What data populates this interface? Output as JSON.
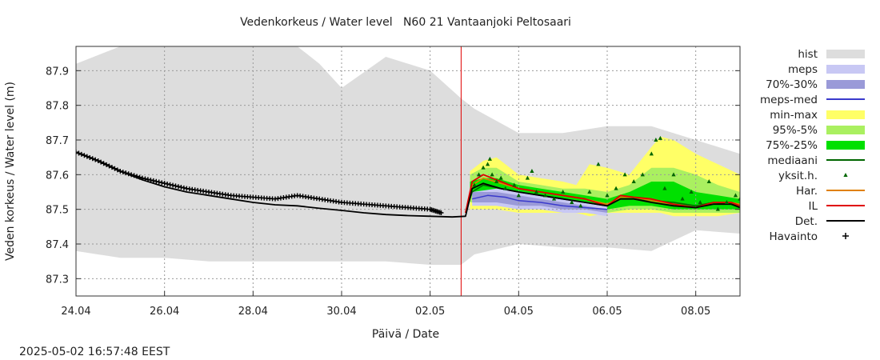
{
  "chart_data": {
    "type": "line",
    "title": "Vedenkorkeus / Water level   N60 21 Vantaanjoki Peltosaari",
    "xlabel": "Päivä / Date",
    "ylabel": "Veden korkeus / Water level (m)",
    "timestamp": "2025-05-02 16:57:48 EEST",
    "x_ticks": [
      "24.04",
      "26.04",
      "28.04",
      "30.04",
      "02.05",
      "04.05",
      "06.05",
      "08.05"
    ],
    "x_tick_days": [
      0,
      2,
      4,
      6,
      8,
      10,
      12,
      14
    ],
    "xlim_days": [
      0,
      15
    ],
    "y_ticks": [
      "87.3",
      "87.4",
      "87.5",
      "87.6",
      "87.7",
      "87.8",
      "87.9"
    ],
    "ylim": [
      87.25,
      87.97
    ],
    "grid": true,
    "forecast_start_day": 8.7,
    "legend_position": "right",
    "legend": [
      {
        "label": "hist",
        "kind": "box",
        "color": "#dddddd"
      },
      {
        "label": "meps",
        "kind": "box",
        "color": "#c8c8f4"
      },
      {
        "label": "70%-30%",
        "kind": "box",
        "color": "#9a9ad8"
      },
      {
        "label": "meps-med",
        "kind": "line",
        "color": "#3a3acc"
      },
      {
        "label": "min-max",
        "kind": "box",
        "color": "#ffff66"
      },
      {
        "label": "95%-5%",
        "kind": "box",
        "color": "#aaf060"
      },
      {
        "label": "75%-25%",
        "kind": "box",
        "color": "#00e000"
      },
      {
        "label": "mediaani",
        "kind": "line",
        "color": "#006600"
      },
      {
        "label": "yksit.h.",
        "kind": "marker",
        "color": "#006600"
      },
      {
        "label": "Har.",
        "kind": "line",
        "color": "#e08000"
      },
      {
        "label": "IL",
        "kind": "line",
        "color": "#e00000"
      },
      {
        "label": "Det.",
        "kind": "line",
        "color": "#000000"
      },
      {
        "label": "Havainto",
        "kind": "plus",
        "color": "#000000"
      }
    ],
    "bands": {
      "hist": {
        "x": [
          0,
          1,
          2,
          3,
          4,
          5,
          5.5,
          6,
          7,
          8,
          8.7,
          9,
          10,
          11,
          12,
          13,
          14,
          15
        ],
        "upper": [
          87.92,
          87.97,
          87.97,
          87.97,
          87.97,
          87.97,
          87.92,
          87.85,
          87.94,
          87.9,
          87.82,
          87.79,
          87.72,
          87.72,
          87.74,
          87.74,
          87.7,
          87.66
        ],
        "lower": [
          87.38,
          87.36,
          87.36,
          87.35,
          87.35,
          87.35,
          87.35,
          87.35,
          87.35,
          87.34,
          87.34,
          87.37,
          87.4,
          87.39,
          87.39,
          87.38,
          87.44,
          87.43
        ]
      },
      "meps": {
        "x": [
          8.95,
          9.5,
          10,
          10.5,
          11,
          11.5,
          12
        ],
        "upper": [
          87.55,
          87.56,
          87.55,
          87.54,
          87.53,
          87.52,
          87.51
        ],
        "lower": [
          87.51,
          87.51,
          87.5,
          87.5,
          87.49,
          87.49,
          87.48
        ]
      },
      "meps_70_30": {
        "x": [
          8.95,
          9.5,
          10,
          10.5,
          11,
          11.5,
          12
        ],
        "upper": [
          87.55,
          87.55,
          87.54,
          87.53,
          87.52,
          87.51,
          87.5
        ],
        "lower": [
          87.52,
          87.52,
          87.51,
          87.51,
          87.5,
          87.5,
          87.49
        ]
      },
      "min_max": {
        "x": [
          8.9,
          9.2,
          9.5,
          10,
          10.5,
          11,
          11.3,
          11.6,
          12,
          12.5,
          13,
          13.2,
          13.5,
          14,
          14.5,
          15
        ],
        "upper": [
          87.61,
          87.64,
          87.65,
          87.6,
          87.59,
          87.58,
          87.57,
          87.63,
          87.62,
          87.6,
          87.68,
          87.71,
          87.7,
          87.66,
          87.63,
          87.6
        ],
        "lower": [
          87.5,
          87.5,
          87.5,
          87.49,
          87.49,
          87.49,
          87.49,
          87.48,
          87.49,
          87.49,
          87.49,
          87.49,
          87.48,
          87.48,
          87.48,
          87.49
        ]
      },
      "p95_5": {
        "x": [
          8.9,
          9.2,
          9.5,
          10,
          10.5,
          11,
          11.5,
          12,
          12.5,
          13,
          13.5,
          14,
          14.5,
          15
        ],
        "upper": [
          87.6,
          87.62,
          87.62,
          87.58,
          87.57,
          87.56,
          87.56,
          87.55,
          87.57,
          87.62,
          87.62,
          87.6,
          87.57,
          87.55
        ],
        "lower": [
          87.52,
          87.52,
          87.52,
          87.51,
          87.5,
          87.5,
          87.49,
          87.49,
          87.5,
          87.5,
          87.49,
          87.49,
          87.49,
          87.49
        ]
      },
      "p75_25": {
        "x": [
          8.9,
          9.2,
          9.5,
          10,
          10.5,
          11,
          11.5,
          12,
          12.5,
          13,
          13.5,
          14,
          14.5,
          15
        ],
        "upper": [
          87.58,
          87.59,
          87.59,
          87.57,
          87.56,
          87.55,
          87.54,
          87.53,
          87.55,
          87.58,
          87.58,
          87.55,
          87.54,
          87.53
        ],
        "lower": [
          87.54,
          87.54,
          87.53,
          87.52,
          87.52,
          87.51,
          87.51,
          87.5,
          87.51,
          87.51,
          87.5,
          87.5,
          87.5,
          87.5
        ]
      }
    },
    "series": [
      {
        "name": "meps-med",
        "x": [
          8.95,
          9.3,
          9.7,
          10,
          10.5,
          11,
          11.5,
          12
        ],
        "y": [
          87.53,
          87.54,
          87.535,
          87.525,
          87.52,
          87.51,
          87.505,
          87.5
        ]
      },
      {
        "name": "mediaani",
        "x": [
          8.8,
          8.95,
          9.2,
          9.6,
          10,
          10.5,
          11,
          11.5,
          12,
          12.3,
          12.6,
          13,
          13.5,
          14,
          14.4,
          14.8,
          15
        ],
        "y": [
          87.49,
          87.55,
          87.57,
          87.56,
          87.55,
          87.54,
          87.53,
          87.52,
          87.51,
          87.53,
          87.53,
          87.525,
          87.52,
          87.51,
          87.52,
          87.515,
          87.51
        ]
      },
      {
        "name": "Har.",
        "x": [
          8.8,
          8.95,
          9.2,
          9.6,
          10,
          10.5,
          11,
          11.5,
          12,
          12.3,
          12.6,
          13,
          13.5,
          14,
          14.4,
          14.8,
          15
        ],
        "y": [
          87.49,
          87.57,
          87.59,
          87.575,
          87.56,
          87.55,
          87.54,
          87.53,
          87.515,
          87.535,
          87.535,
          87.525,
          87.515,
          87.505,
          87.52,
          87.52,
          87.515
        ]
      },
      {
        "name": "IL",
        "x": [
          8.8,
          8.95,
          9.2,
          9.6,
          10,
          10.5,
          11,
          11.5,
          12,
          12.3,
          12.6,
          13,
          13.5,
          14,
          14.4,
          14.8,
          15
        ],
        "y": [
          87.49,
          87.58,
          87.6,
          87.58,
          87.56,
          87.55,
          87.54,
          87.53,
          87.51,
          87.54,
          87.535,
          87.53,
          87.515,
          87.505,
          87.52,
          87.52,
          87.51
        ]
      },
      {
        "name": "Det.",
        "x": [
          0,
          0.5,
          1,
          1.5,
          2,
          2.5,
          3,
          3.5,
          4,
          4.5,
          5,
          5.5,
          6,
          6.5,
          7,
          7.5,
          8,
          8.5,
          8.8,
          8.95,
          9.2,
          9.6,
          10,
          10.5,
          11,
          11.5,
          12,
          12.3,
          12.6,
          13,
          13.5,
          14,
          14.4,
          14.8,
          15
        ],
        "y": [
          87.665,
          87.64,
          87.61,
          87.585,
          87.565,
          87.55,
          87.54,
          87.53,
          87.52,
          87.513,
          87.51,
          87.503,
          87.497,
          87.49,
          87.485,
          87.482,
          87.48,
          87.478,
          87.48,
          87.56,
          87.575,
          87.56,
          87.55,
          87.54,
          87.53,
          87.52,
          87.51,
          87.53,
          87.53,
          87.52,
          87.51,
          87.505,
          87.515,
          87.515,
          87.505
        ]
      }
    ],
    "observations": {
      "name": "Havainto",
      "x": [
        0,
        0.5,
        1,
        1.5,
        2,
        2.5,
        3,
        3.5,
        4,
        4.5,
        5,
        5.5,
        6,
        6.5,
        7,
        7.5,
        8,
        8.25
      ],
      "y": [
        87.665,
        87.64,
        87.61,
        87.59,
        87.575,
        87.56,
        87.55,
        87.54,
        87.535,
        87.53,
        87.54,
        87.53,
        87.52,
        87.515,
        87.51,
        87.505,
        87.5,
        87.49
      ]
    },
    "ensemble_members": {
      "name": "yksit.h.",
      "x": [
        9.0,
        9.1,
        9.2,
        9.3,
        9.35,
        9.4,
        9.5,
        9.6,
        9.7,
        9.9,
        10.0,
        10.2,
        10.3,
        10.4,
        10.6,
        10.8,
        11.0,
        11.2,
        11.4,
        11.6,
        11.8,
        12.0,
        12.2,
        12.4,
        12.6,
        12.8,
        13.0,
        13.1,
        13.2,
        13.3,
        13.5,
        13.7,
        13.9,
        14.1,
        14.3,
        14.5,
        14.7,
        14.9,
        15.0
      ],
      "y": [
        87.57,
        87.6,
        87.62,
        87.63,
        87.645,
        87.6,
        87.58,
        87.59,
        87.56,
        87.57,
        87.54,
        87.59,
        87.61,
        87.55,
        87.54,
        87.53,
        87.55,
        87.52,
        87.51,
        87.55,
        87.63,
        87.54,
        87.56,
        87.6,
        87.58,
        87.6,
        87.66,
        87.7,
        87.705,
        87.56,
        87.6,
        87.53,
        87.55,
        87.52,
        87.58,
        87.5,
        87.52,
        87.54,
        87.53
      ]
    }
  }
}
